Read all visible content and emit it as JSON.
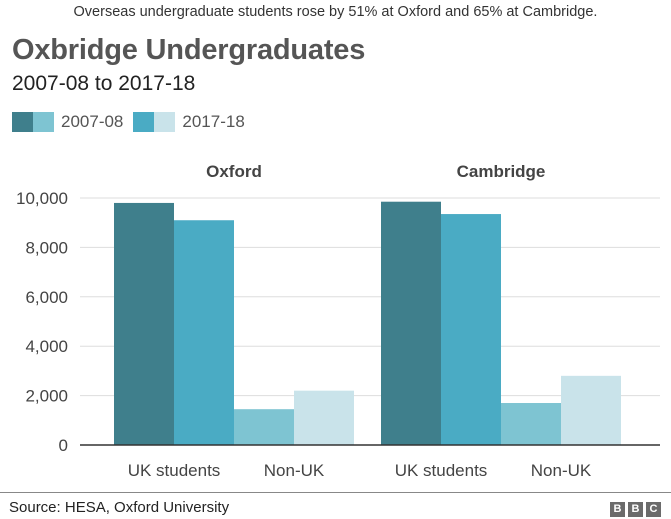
{
  "caption": "Overseas undergraduate students rose by 51% at Oxford and 65% at Cambridge.",
  "source": "Source: HESA, Oxford University",
  "logo": [
    "B",
    "B",
    "C"
  ],
  "legend": [
    {
      "label": "2007-08",
      "colors": [
        "#3f7f8c",
        "#7ec4d2"
      ]
    },
    {
      "label": "2017-18",
      "colors": [
        "#4aabc4",
        "#c9e3ea"
      ]
    }
  ],
  "colors": {
    "uk_2007": "#3f7f8c",
    "uk_2017": "#4aabc4",
    "nonuk_2007": "#7ec4d2",
    "nonuk_2017": "#c9e3ea",
    "grid": "#dddddd",
    "axis": "#333333"
  },
  "chart_data": {
    "type": "bar",
    "title": "Oxbridge Undergraduates",
    "subtitle": "2007-08 to 2017-18",
    "ylim": [
      0,
      10000
    ],
    "yticks": [
      0,
      2000,
      4000,
      6000,
      8000,
      10000
    ],
    "ytick_labels": [
      "0",
      "2,000",
      "4,000",
      "6,000",
      "8,000",
      "10,000"
    ],
    "grid": true,
    "legend_position": "top-left",
    "panels": [
      {
        "name": "Oxford",
        "categories": [
          "UK students",
          "Non-UK"
        ],
        "series": [
          {
            "name": "2007-08",
            "values": [
              9800,
              1450
            ]
          },
          {
            "name": "2017-18",
            "values": [
              9100,
              2200
            ]
          }
        ]
      },
      {
        "name": "Cambridge",
        "categories": [
          "UK students",
          "Non-UK"
        ],
        "series": [
          {
            "name": "2007-08",
            "values": [
              9850,
              1700
            ]
          },
          {
            "name": "2017-18",
            "values": [
              9350,
              2800
            ]
          }
        ]
      }
    ]
  }
}
